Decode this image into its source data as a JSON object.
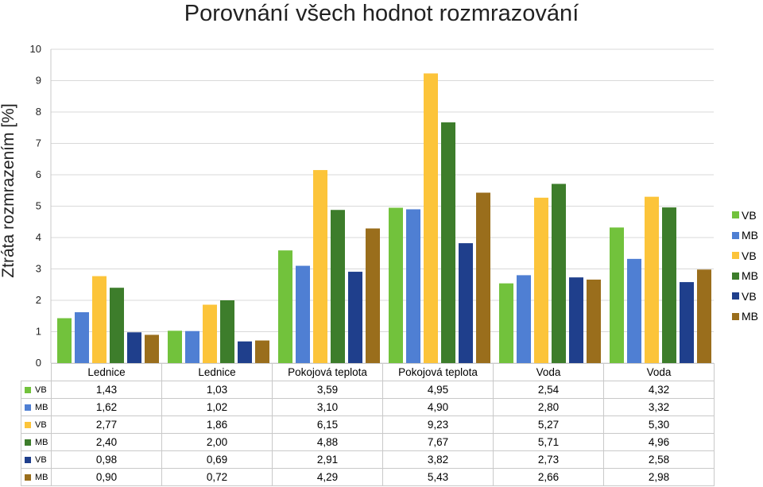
{
  "colors": [
    "#72c23c",
    "#4f7fd3",
    "#fcc43a",
    "#3d7d2b",
    "#1f3f8c",
    "#9a6e1c"
  ],
  "chart_data": {
    "type": "bar",
    "title": "Porovnání všech hodnot rozmrazování",
    "ylabel": "Ztráta rozmrazením [%]",
    "ylim": [
      0,
      10
    ],
    "yticks": [
      "0",
      "1",
      "2",
      "3",
      "4",
      "5",
      "6",
      "7",
      "8",
      "9",
      "10"
    ],
    "grid": true,
    "legend_position": "right",
    "categories": [
      "Lednice",
      "Lednice",
      "Pokojová teplota",
      "Pokojová teplota",
      "Voda",
      "Voda"
    ],
    "series": [
      {
        "name": "VB",
        "values": [
          1.43,
          1.03,
          3.59,
          4.95,
          2.54,
          4.32
        ],
        "labels": [
          "1,43",
          "1,03",
          "3,59",
          "4,95",
          "2,54",
          "4,32"
        ]
      },
      {
        "name": "MB",
        "values": [
          1.62,
          1.02,
          3.1,
          4.9,
          2.8,
          3.32
        ],
        "labels": [
          "1,62",
          "1,02",
          "3,10",
          "4,90",
          "2,80",
          "3,32"
        ]
      },
      {
        "name": "VB",
        "values": [
          2.77,
          1.86,
          6.15,
          9.23,
          5.27,
          5.3
        ],
        "labels": [
          "2,77",
          "1,86",
          "6,15",
          "9,23",
          "5,27",
          "5,30"
        ]
      },
      {
        "name": "MB",
        "values": [
          2.4,
          2.0,
          4.88,
          7.67,
          5.71,
          4.96
        ],
        "labels": [
          "2,40",
          "2,00",
          "4,88",
          "7,67",
          "5,71",
          "4,96"
        ]
      },
      {
        "name": "VB",
        "values": [
          0.98,
          0.69,
          2.91,
          3.82,
          2.73,
          2.58
        ],
        "labels": [
          "0,98",
          "0,69",
          "2,91",
          "3,82",
          "2,73",
          "2,58"
        ]
      },
      {
        "name": "MB",
        "values": [
          0.9,
          0.72,
          4.29,
          5.43,
          2.66,
          2.98
        ],
        "labels": [
          "0,90",
          "0,72",
          "4,29",
          "5,43",
          "2,66",
          "2,98"
        ]
      }
    ]
  }
}
